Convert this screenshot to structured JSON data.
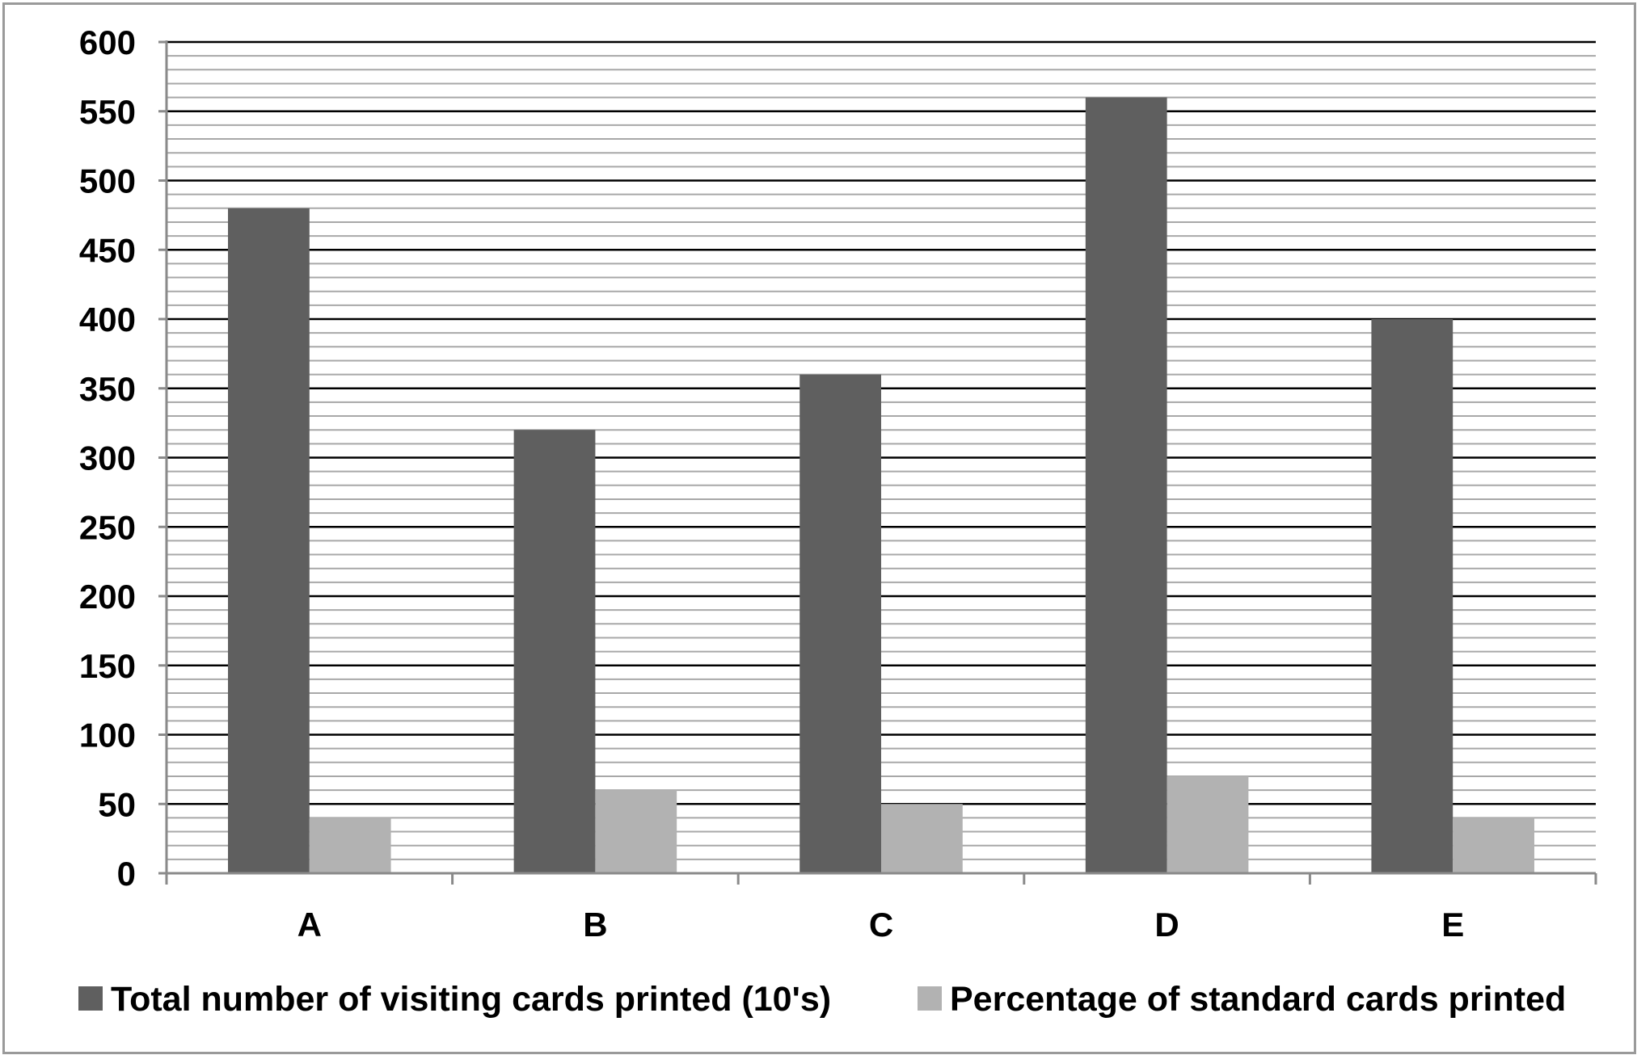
{
  "chart_data": {
    "type": "bar",
    "title": "",
    "xlabel": "",
    "ylabel": "",
    "categories": [
      "A",
      "B",
      "C",
      "D",
      "E"
    ],
    "series": [
      {
        "name": "Total number of visiting cards printed (10's)",
        "values": [
          480,
          320,
          360,
          560,
          400
        ],
        "color": "#5f5f5f"
      },
      {
        "name": "Percentage of standard cards printed",
        "values": [
          40,
          60,
          50,
          70,
          40
        ],
        "color": "#b2b2b2"
      }
    ],
    "ylim": [
      0,
      600
    ],
    "yticks": [
      0,
      50,
      100,
      150,
      200,
      250,
      300,
      350,
      400,
      450,
      500,
      550,
      600
    ],
    "major_grid_step": 50,
    "minor_grid_step": 10,
    "grid": true,
    "legend_position": "bottom"
  }
}
